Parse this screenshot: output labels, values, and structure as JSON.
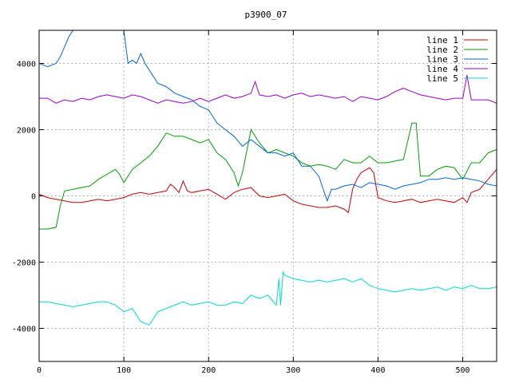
{
  "chart_data": {
    "type": "line",
    "title": "p3900_07",
    "xlabel": "",
    "ylabel": "",
    "xlim": [
      0,
      540
    ],
    "ylim": [
      -5000,
      5000
    ],
    "x_ticks": [
      0,
      100,
      200,
      300,
      400,
      500
    ],
    "y_ticks": [
      -4000,
      -2000,
      0,
      2000,
      4000
    ],
    "grid": true,
    "legend_position": "top-right",
    "series": [
      {
        "name": "line 1",
        "color": "#cc0000",
        "points": [
          [
            0,
            50
          ],
          [
            10,
            -50
          ],
          [
            20,
            -100
          ],
          [
            30,
            -150
          ],
          [
            40,
            -200
          ],
          [
            50,
            -200
          ],
          [
            60,
            -150
          ],
          [
            70,
            -100
          ],
          [
            80,
            -150
          ],
          [
            90,
            -100
          ],
          [
            100,
            -50
          ],
          [
            110,
            50
          ],
          [
            120,
            100
          ],
          [
            130,
            50
          ],
          [
            140,
            100
          ],
          [
            150,
            150
          ],
          [
            155,
            350
          ],
          [
            160,
            250
          ],
          [
            165,
            100
          ],
          [
            170,
            450
          ],
          [
            175,
            150
          ],
          [
            180,
            100
          ],
          [
            190,
            150
          ],
          [
            200,
            200
          ],
          [
            210,
            50
          ],
          [
            220,
            -100
          ],
          [
            230,
            100
          ],
          [
            240,
            200
          ],
          [
            250,
            250
          ],
          [
            260,
            0
          ],
          [
            270,
            -50
          ],
          [
            280,
            0
          ],
          [
            290,
            50
          ],
          [
            300,
            -150
          ],
          [
            310,
            -250
          ],
          [
            320,
            -300
          ],
          [
            330,
            -350
          ],
          [
            340,
            -350
          ],
          [
            350,
            -300
          ],
          [
            360,
            -400
          ],
          [
            365,
            -500
          ],
          [
            370,
            200
          ],
          [
            375,
            500
          ],
          [
            380,
            700
          ],
          [
            390,
            850
          ],
          [
            395,
            700
          ],
          [
            400,
            -50
          ],
          [
            410,
            -150
          ],
          [
            420,
            -200
          ],
          [
            430,
            -150
          ],
          [
            440,
            -100
          ],
          [
            450,
            -200
          ],
          [
            460,
            -150
          ],
          [
            470,
            -100
          ],
          [
            480,
            -150
          ],
          [
            490,
            -200
          ],
          [
            500,
            -50
          ],
          [
            505,
            -200
          ],
          [
            510,
            100
          ],
          [
            520,
            200
          ],
          [
            530,
            500
          ],
          [
            540,
            800
          ]
        ]
      },
      {
        "name": "line 2",
        "color": "#00a000",
        "points": [
          [
            0,
            -1000
          ],
          [
            10,
            -1000
          ],
          [
            20,
            -950
          ],
          [
            25,
            -300
          ],
          [
            30,
            150
          ],
          [
            40,
            200
          ],
          [
            50,
            250
          ],
          [
            60,
            300
          ],
          [
            70,
            500
          ],
          [
            80,
            650
          ],
          [
            90,
            800
          ],
          [
            95,
            650
          ],
          [
            100,
            400
          ],
          [
            105,
            600
          ],
          [
            110,
            800
          ],
          [
            120,
            1000
          ],
          [
            130,
            1200
          ],
          [
            140,
            1500
          ],
          [
            150,
            1900
          ],
          [
            160,
            1800
          ],
          [
            170,
            1800
          ],
          [
            180,
            1700
          ],
          [
            190,
            1600
          ],
          [
            200,
            1700
          ],
          [
            210,
            1300
          ],
          [
            220,
            1100
          ],
          [
            230,
            700
          ],
          [
            235,
            300
          ],
          [
            240,
            700
          ],
          [
            250,
            2000
          ],
          [
            260,
            1600
          ],
          [
            270,
            1300
          ],
          [
            280,
            1400
          ],
          [
            290,
            1300
          ],
          [
            300,
            1200
          ],
          [
            310,
            1000
          ],
          [
            320,
            900
          ],
          [
            330,
            950
          ],
          [
            340,
            900
          ],
          [
            350,
            800
          ],
          [
            360,
            1100
          ],
          [
            370,
            1000
          ],
          [
            380,
            1000
          ],
          [
            390,
            1200
          ],
          [
            400,
            1000
          ],
          [
            410,
            1000
          ],
          [
            420,
            1050
          ],
          [
            430,
            1100
          ],
          [
            440,
            2200
          ],
          [
            445,
            2200
          ],
          [
            450,
            600
          ],
          [
            460,
            600
          ],
          [
            470,
            800
          ],
          [
            480,
            900
          ],
          [
            490,
            850
          ],
          [
            500,
            500
          ],
          [
            510,
            1000
          ],
          [
            520,
            1000
          ],
          [
            530,
            1300
          ],
          [
            540,
            1400
          ]
        ]
      },
      {
        "name": "line 3",
        "color": "#0066dd",
        "points": [
          [
            0,
            4000
          ],
          [
            10,
            3900
          ],
          [
            20,
            4000
          ],
          [
            25,
            4200
          ],
          [
            30,
            4500
          ],
          [
            35,
            4800
          ],
          [
            40,
            5000
          ],
          [
            100,
            5000
          ],
          [
            105,
            4000
          ],
          [
            110,
            4100
          ],
          [
            115,
            4000
          ],
          [
            120,
            4300
          ],
          [
            125,
            4000
          ],
          [
            130,
            3800
          ],
          [
            140,
            3400
          ],
          [
            150,
            3300
          ],
          [
            160,
            3100
          ],
          [
            170,
            3000
          ],
          [
            180,
            2900
          ],
          [
            190,
            2700
          ],
          [
            200,
            2600
          ],
          [
            210,
            2200
          ],
          [
            220,
            2000
          ],
          [
            230,
            1800
          ],
          [
            240,
            1500
          ],
          [
            250,
            1700
          ],
          [
            260,
            1500
          ],
          [
            270,
            1300
          ],
          [
            280,
            1300
          ],
          [
            290,
            1200
          ],
          [
            300,
            1300
          ],
          [
            310,
            900
          ],
          [
            320,
            900
          ],
          [
            330,
            600
          ],
          [
            340,
            -150
          ],
          [
            345,
            200
          ],
          [
            350,
            200
          ],
          [
            360,
            300
          ],
          [
            370,
            350
          ],
          [
            380,
            250
          ],
          [
            390,
            400
          ],
          [
            400,
            350
          ],
          [
            410,
            300
          ],
          [
            420,
            200
          ],
          [
            430,
            300
          ],
          [
            440,
            350
          ],
          [
            450,
            400
          ],
          [
            460,
            500
          ],
          [
            470,
            500
          ],
          [
            480,
            550
          ],
          [
            490,
            500
          ],
          [
            500,
            550
          ],
          [
            510,
            500
          ],
          [
            520,
            450
          ],
          [
            530,
            350
          ],
          [
            540,
            300
          ]
        ]
      },
      {
        "name": "line 4",
        "color": "#9900cc",
        "points": [
          [
            0,
            2950
          ],
          [
            10,
            2950
          ],
          [
            20,
            2800
          ],
          [
            30,
            2900
          ],
          [
            40,
            2850
          ],
          [
            50,
            2950
          ],
          [
            60,
            2900
          ],
          [
            70,
            3000
          ],
          [
            80,
            3050
          ],
          [
            90,
            3000
          ],
          [
            100,
            2950
          ],
          [
            110,
            3050
          ],
          [
            120,
            3000
          ],
          [
            130,
            2900
          ],
          [
            140,
            2800
          ],
          [
            150,
            2900
          ],
          [
            160,
            2850
          ],
          [
            170,
            2800
          ],
          [
            180,
            2850
          ],
          [
            190,
            2950
          ],
          [
            200,
            2850
          ],
          [
            210,
            2950
          ],
          [
            220,
            3050
          ],
          [
            230,
            2950
          ],
          [
            240,
            3000
          ],
          [
            250,
            3100
          ],
          [
            255,
            3450
          ],
          [
            260,
            3050
          ],
          [
            270,
            3000
          ],
          [
            280,
            3050
          ],
          [
            290,
            2950
          ],
          [
            300,
            3050
          ],
          [
            310,
            3100
          ],
          [
            320,
            3000
          ],
          [
            330,
            3050
          ],
          [
            340,
            3000
          ],
          [
            350,
            2950
          ],
          [
            360,
            3000
          ],
          [
            370,
            2850
          ],
          [
            380,
            3000
          ],
          [
            390,
            2950
          ],
          [
            400,
            2900
          ],
          [
            410,
            3000
          ],
          [
            420,
            3150
          ],
          [
            430,
            3250
          ],
          [
            440,
            3150
          ],
          [
            450,
            3050
          ],
          [
            460,
            3000
          ],
          [
            470,
            2950
          ],
          [
            480,
            2900
          ],
          [
            490,
            2950
          ],
          [
            500,
            2950
          ],
          [
            505,
            3650
          ],
          [
            510,
            2900
          ],
          [
            520,
            2900
          ],
          [
            530,
            2900
          ],
          [
            540,
            2800
          ]
        ]
      },
      {
        "name": "line 5",
        "color": "#00d8d8",
        "points": [
          [
            0,
            -3200
          ],
          [
            10,
            -3200
          ],
          [
            20,
            -3250
          ],
          [
            30,
            -3300
          ],
          [
            40,
            -3350
          ],
          [
            50,
            -3300
          ],
          [
            60,
            -3250
          ],
          [
            70,
            -3200
          ],
          [
            80,
            -3200
          ],
          [
            90,
            -3300
          ],
          [
            100,
            -3500
          ],
          [
            110,
            -3400
          ],
          [
            120,
            -3800
          ],
          [
            130,
            -3900
          ],
          [
            140,
            -3500
          ],
          [
            150,
            -3400
          ],
          [
            160,
            -3300
          ],
          [
            170,
            -3200
          ],
          [
            180,
            -3300
          ],
          [
            190,
            -3250
          ],
          [
            200,
            -3200
          ],
          [
            210,
            -3300
          ],
          [
            220,
            -3300
          ],
          [
            230,
            -3200
          ],
          [
            240,
            -3250
          ],
          [
            250,
            -3000
          ],
          [
            260,
            -3100
          ],
          [
            270,
            -3000
          ],
          [
            280,
            -3300
          ],
          [
            283,
            -2500
          ],
          [
            285,
            -3300
          ],
          [
            288,
            -2300
          ],
          [
            290,
            -2400
          ],
          [
            300,
            -2500
          ],
          [
            310,
            -2550
          ],
          [
            320,
            -2600
          ],
          [
            330,
            -2550
          ],
          [
            340,
            -2600
          ],
          [
            350,
            -2550
          ],
          [
            360,
            -2500
          ],
          [
            370,
            -2600
          ],
          [
            380,
            -2500
          ],
          [
            390,
            -2700
          ],
          [
            400,
            -2800
          ],
          [
            410,
            -2850
          ],
          [
            420,
            -2900
          ],
          [
            430,
            -2850
          ],
          [
            440,
            -2800
          ],
          [
            450,
            -2850
          ],
          [
            460,
            -2800
          ],
          [
            470,
            -2750
          ],
          [
            480,
            -2850
          ],
          [
            490,
            -2750
          ],
          [
            500,
            -2800
          ],
          [
            510,
            -2700
          ],
          [
            520,
            -2800
          ],
          [
            530,
            -2800
          ],
          [
            540,
            -2750
          ]
        ]
      }
    ]
  }
}
